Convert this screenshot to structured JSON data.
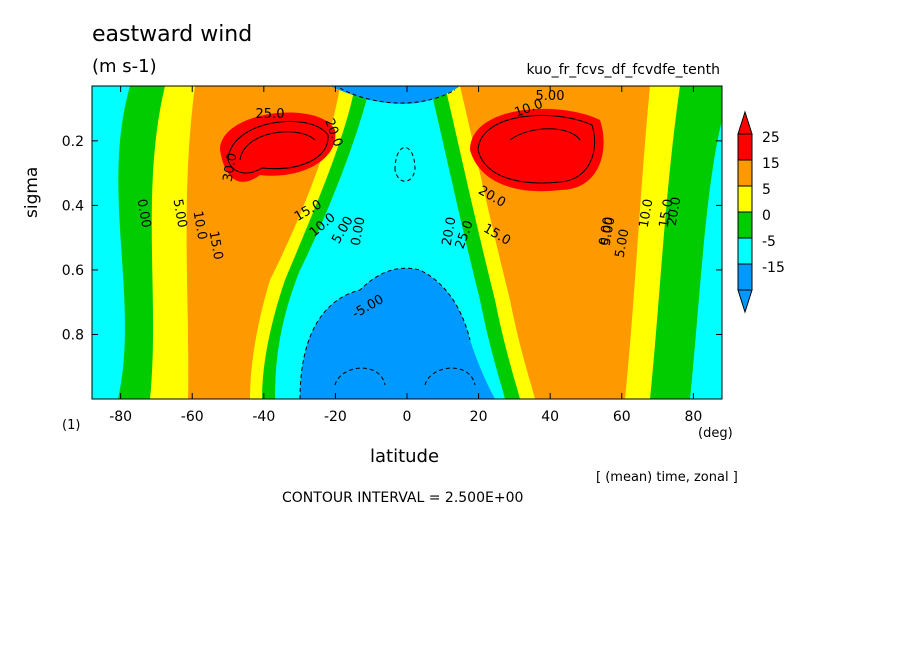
{
  "chart_data": {
    "type": "heatmap",
    "title": "eastward wind",
    "units": "(m s-1)",
    "run_name": "kuo_fr_fcvs_df_fcvdfe_tenth",
    "xlabel": "latitude",
    "x_unit": "(deg)",
    "ylabel": "sigma",
    "panel_index": "(1)",
    "averaging": "[ (mean) time, zonal ]",
    "contour_interval_text": "CONTOUR INTERVAL = 2.500E+00",
    "x_ticks": [
      -80,
      -60,
      -40,
      -20,
      0,
      20,
      40,
      60,
      80
    ],
    "y_ticks": [
      "0.2",
      "0.4",
      "0.6",
      "0.8"
    ],
    "xlim": [
      -88,
      88
    ],
    "ylim": [
      1.0,
      0.03
    ],
    "colorbar": {
      "labels": [
        "25",
        "15",
        "5",
        "0",
        "-5",
        "-15"
      ],
      "colors": [
        "#ff0000",
        "#ff9900",
        "#ffff00",
        "#00cc00",
        "#00ffff",
        "#0099ff"
      ],
      "extend": "both"
    },
    "jets": [
      {
        "lat": -40,
        "sigma": 0.2,
        "max_label": "30.0"
      },
      {
        "lat": 45,
        "sigma": 0.2,
        "max_label": "25.0"
      }
    ],
    "contour_labels": [
      "25.0",
      "20.0",
      "30.0",
      "15.0",
      "10.0",
      "5.00",
      "0.00",
      "0.00",
      "5.00",
      "10.0",
      "15.0",
      "20.0",
      "25.0",
      "20.0",
      "15.0",
      "10.0",
      "5.00",
      "0.00",
      "5.00",
      "10.0",
      "15.0",
      "20.0",
      "-5.00",
      "5.00"
    ]
  }
}
